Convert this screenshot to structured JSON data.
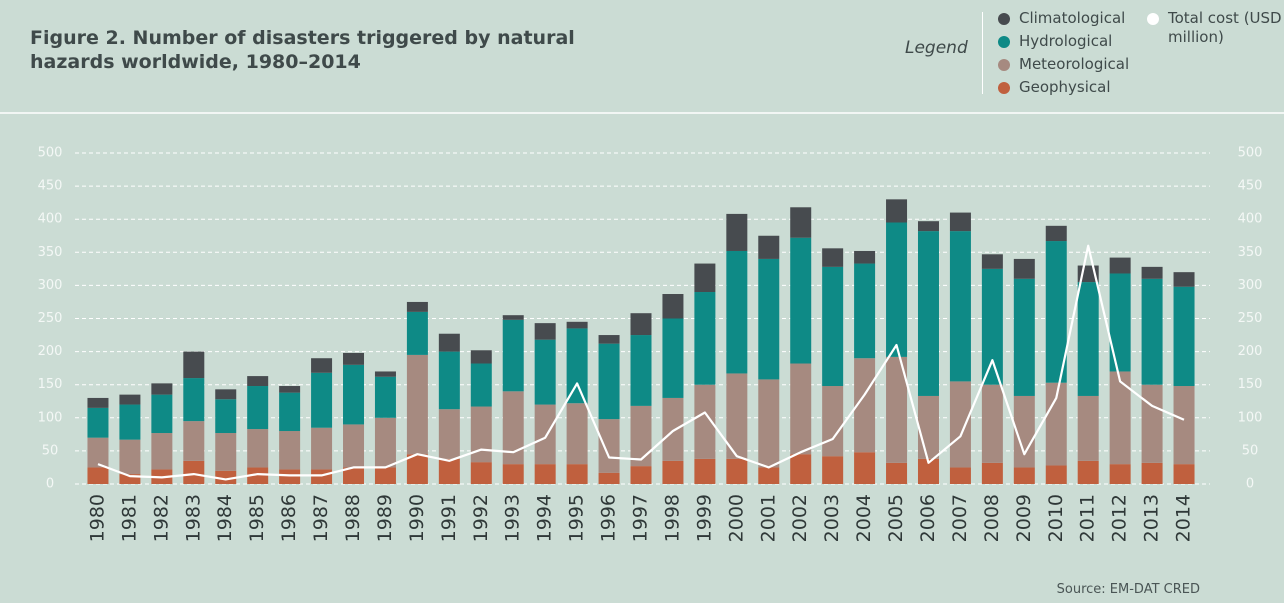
{
  "chart_data": {
    "type": "bar",
    "title": "Figure 2. Number of disasters triggered by natural hazards worldwide, 1980–2014",
    "legend_label": "Legend",
    "source": "Source: EM-DAT CRED",
    "stacked": true,
    "grid": true,
    "categories": [
      "1980",
      "1981",
      "1982",
      "1983",
      "1984",
      "1985",
      "1986",
      "1987",
      "1988",
      "1989",
      "1990",
      "1991",
      "1992",
      "1993",
      "1994",
      "1995",
      "1996",
      "1997",
      "1998",
      "1999",
      "2000",
      "2001",
      "2002",
      "2003",
      "2004",
      "2005",
      "2006",
      "2007",
      "2008",
      "2009",
      "2010",
      "2011",
      "2012",
      "2013",
      "2014"
    ],
    "series": [
      {
        "name": "Climatological",
        "color": "#474b4f",
        "values": [
          15,
          15,
          17,
          40,
          15,
          15,
          10,
          22,
          18,
          8,
          15,
          27,
          20,
          7,
          25,
          10,
          13,
          33,
          37,
          43,
          56,
          35,
          46,
          28,
          19,
          35,
          15,
          28,
          22,
          30,
          23,
          25,
          24,
          18,
          22
        ]
      },
      {
        "name": "Hydrological",
        "color": "#0e8a86",
        "values": [
          45,
          53,
          58,
          65,
          51,
          65,
          58,
          83,
          90,
          62,
          65,
          87,
          65,
          108,
          98,
          113,
          114,
          107,
          120,
          140,
          185,
          182,
          190,
          180,
          143,
          203,
          249,
          227,
          175,
          177,
          214,
          172,
          148,
          160,
          150
        ]
      },
      {
        "name": "Meteorological",
        "color": "#a68a80",
        "values": [
          45,
          52,
          55,
          60,
          57,
          58,
          58,
          63,
          65,
          75,
          150,
          75,
          84,
          110,
          90,
          92,
          81,
          91,
          95,
          112,
          129,
          133,
          137,
          106,
          142,
          160,
          95,
          130,
          118,
          108,
          125,
          98,
          140,
          118,
          118
        ]
      },
      {
        "name": "Geophysical",
        "color": "#c0603e",
        "values": [
          25,
          15,
          22,
          35,
          20,
          25,
          22,
          22,
          25,
          25,
          45,
          38,
          33,
          30,
          30,
          30,
          17,
          27,
          35,
          38,
          38,
          25,
          45,
          42,
          48,
          32,
          38,
          25,
          32,
          25,
          28,
          35,
          30,
          32,
          30
        ]
      },
      {
        "name": "Total cost (USD million)",
        "color": "#ffffff",
        "type": "line",
        "axis": "y2",
        "values": [
          30,
          12,
          10,
          15,
          7,
          15,
          13,
          13,
          25,
          25,
          45,
          35,
          52,
          48,
          70,
          152,
          40,
          37,
          80,
          108,
          42,
          25,
          48,
          68,
          135,
          210,
          32,
          72,
          187,
          45,
          130,
          360,
          155,
          118,
          97
        ]
      }
    ],
    "ylim": [
      0,
      500
    ],
    "yticks": [
      0,
      50,
      100,
      150,
      200,
      250,
      300,
      350,
      400,
      450,
      500
    ],
    "y2lim": [
      0,
      500
    ],
    "y2ticks": [
      0,
      50,
      100,
      150,
      200,
      250,
      300,
      350,
      400,
      450,
      500
    ]
  }
}
